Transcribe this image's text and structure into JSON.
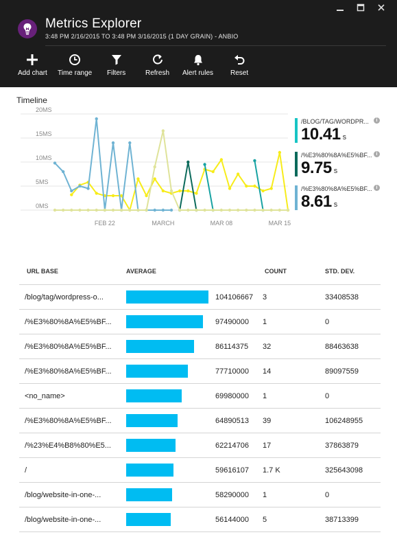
{
  "window": {
    "title": "Metrics Explorer",
    "subtitle": "3:48 PM 2/16/2015 TO 3:48 PM 3/16/2015 (1 DAY GRAIN) - ANBIO",
    "icon": "lightbulb-icon",
    "controls": [
      "minimize-icon",
      "maximize-icon",
      "close-icon"
    ]
  },
  "toolbar": {
    "add_chart": "Add chart",
    "time_range": "Time range",
    "filters": "Filters",
    "refresh": "Refresh",
    "alert_rules": "Alert rules",
    "reset": "Reset"
  },
  "timeline": {
    "title": "Timeline"
  },
  "chart_data": {
    "type": "line",
    "ylim": [
      0,
      20
    ],
    "yticks": [
      "0MS",
      "5MS",
      "10MS",
      "15MS",
      "20MS"
    ],
    "xticks": [
      "FEB 22",
      "MARCH",
      "MAR 08",
      "MAR 15"
    ],
    "x": [
      "2/16",
      "2/17",
      "2/18",
      "2/19",
      "2/20",
      "2/21",
      "2/22",
      "2/23",
      "2/24",
      "2/25",
      "2/26",
      "2/27",
      "2/28",
      "3/1",
      "3/2",
      "3/3",
      "3/4",
      "3/5",
      "3/6",
      "3/7",
      "3/8",
      "3/9",
      "3/10",
      "3/11",
      "3/12",
      "3/13",
      "3/14",
      "3/15",
      "3/16"
    ],
    "series": [
      {
        "color": "#f7ec1a",
        "values": [
          null,
          null,
          3.2,
          5.2,
          5.8,
          3.5,
          3,
          3,
          3,
          0,
          6.5,
          3,
          6.5,
          4,
          3.5,
          4,
          4,
          3.5,
          8.5,
          8,
          10.5,
          4.5,
          7.5,
          5,
          5,
          4,
          4.5,
          12,
          0
        ]
      },
      {
        "color": "#17a2a2",
        "values": [
          null,
          null,
          null,
          null,
          null,
          null,
          null,
          null,
          null,
          null,
          null,
          null,
          null,
          null,
          null,
          null,
          null,
          null,
          9.5,
          0,
          null,
          null,
          null,
          null,
          10.3,
          0,
          null,
          null,
          null
        ]
      },
      {
        "color": "#0b6a5b",
        "values": [
          null,
          null,
          null,
          null,
          null,
          null,
          null,
          null,
          null,
          null,
          null,
          null,
          null,
          null,
          null,
          0,
          10,
          0,
          null,
          null,
          null,
          null,
          null,
          null,
          null,
          null,
          null,
          null,
          null
        ]
      },
      {
        "color": "#6fb3d3",
        "values": [
          9.8,
          8,
          4,
          5,
          4.5,
          19,
          0,
          14,
          0,
          14,
          0,
          0,
          0,
          0,
          0,
          null,
          null,
          null,
          null,
          null,
          null,
          null,
          null,
          null,
          null,
          null,
          null,
          null,
          null
        ]
      },
      {
        "color": "#dfe39a",
        "values": [
          0,
          0,
          0,
          0,
          0,
          0,
          0,
          0,
          0,
          0,
          0,
          0,
          9,
          16.5,
          4,
          0,
          0,
          0,
          0,
          0,
          0,
          0,
          0,
          0,
          0,
          0,
          0,
          0,
          0
        ]
      }
    ],
    "legend": [
      {
        "name": "/BLOG/TAG/WORDPR...",
        "value": "10.41",
        "unit": "s",
        "color": "#17c4c4"
      },
      {
        "name": "/%E3%80%8A%E5%BF...",
        "value": "9.75",
        "unit": "s",
        "color": "#0b6a5b"
      },
      {
        "name": "/%E3%80%8A%E5%BF...",
        "value": "8.61",
        "unit": "s",
        "color": "#6fb3d3"
      }
    ]
  },
  "table": {
    "headers": {
      "url": "URL BASE",
      "average": "AVERAGE",
      "count": "COUNT",
      "std": "STD. DEV."
    },
    "bar_color": "#00bcf2",
    "bar_max": 104106667,
    "rows": [
      {
        "url": "/blog/tag/wordpress-o...",
        "average": "104106667",
        "avg_value": 104106667,
        "count": "3",
        "std": "33408538"
      },
      {
        "url": "/%E3%80%8A%E5%BF...",
        "average": "97490000",
        "avg_value": 97490000,
        "count": "1",
        "std": "0"
      },
      {
        "url": "/%E3%80%8A%E5%BF...",
        "average": "86114375",
        "avg_value": 86114375,
        "count": "32",
        "std": "88463638"
      },
      {
        "url": "/%E3%80%8A%E5%BF...",
        "average": "77710000",
        "avg_value": 77710000,
        "count": "14",
        "std": "89097559"
      },
      {
        "url": "<no_name>",
        "average": "69980000",
        "avg_value": 69980000,
        "count": "1",
        "std": "0"
      },
      {
        "url": "/%E3%80%8A%E5%BF...",
        "average": "64890513",
        "avg_value": 64890513,
        "count": "39",
        "std": "106248955"
      },
      {
        "url": "/%23%E4%B8%80%E5...",
        "average": "62214706",
        "avg_value": 62214706,
        "count": "17",
        "std": "37863879"
      },
      {
        "url": "/",
        "average": "59616107",
        "avg_value": 59616107,
        "count": "1.7 K",
        "std": "325643098"
      },
      {
        "url": "/blog/website-in-one-...",
        "average": "58290000",
        "avg_value": 58290000,
        "count": "1",
        "std": "0"
      },
      {
        "url": "/blog/website-in-one-...",
        "average": "56144000",
        "avg_value": 56144000,
        "count": "5",
        "std": "38713399"
      }
    ]
  }
}
